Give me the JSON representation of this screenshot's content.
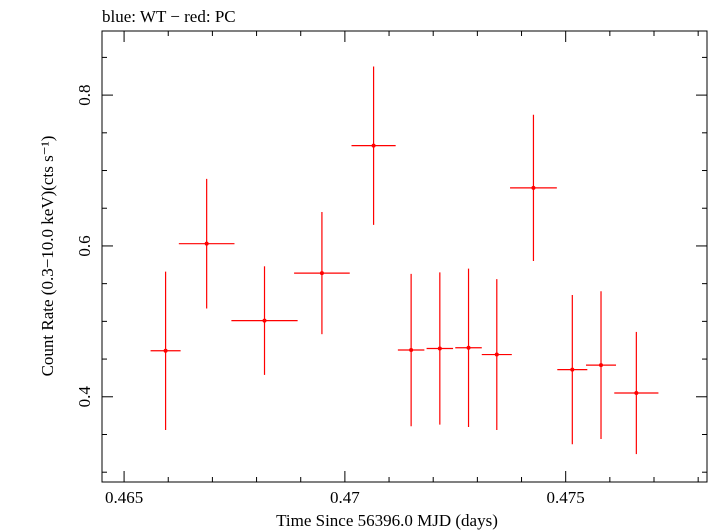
{
  "chart_data": {
    "type": "scatter",
    "title": "blue: WT − red: PC",
    "xlabel": "Time Since 56396.0 MJD (days)",
    "ylabel": "Count Rate (0.3−10.0 keV)(cts s⁻¹)",
    "xlim": [
      0.4645,
      0.4782
    ],
    "ylim": [
      0.287,
      0.885
    ],
    "x_ticks": [
      0.465,
      0.47,
      0.475
    ],
    "x_tick_labels": [
      "0.465",
      "0.47",
      "0.475"
    ],
    "y_ticks": [
      0.4,
      0.6,
      0.8
    ],
    "y_tick_labels": [
      "0.4",
      "0.6",
      "0.8"
    ],
    "grid": false,
    "series": [
      {
        "color": "#ff0000",
        "points": [
          {
            "x": 0.46594,
            "xerr": 0.00034,
            "y": 0.461,
            "yerr": 0.105
          },
          {
            "x": 0.46687,
            "xerr": 0.00063,
            "y": 0.603,
            "yerr": 0.086
          },
          {
            "x": 0.46818,
            "xerr": 0.00075,
            "y": 0.501,
            "yerr": 0.072
          },
          {
            "x": 0.46948,
            "xerr": 0.00063,
            "y": 0.564,
            "yerr": 0.081
          },
          {
            "x": 0.47065,
            "xerr": 0.0005,
            "y": 0.733,
            "yerr": 0.105
          },
          {
            "x": 0.4715,
            "xerr": 0.0003,
            "y": 0.462,
            "yerr": 0.101
          },
          {
            "x": 0.47215,
            "xerr": 0.0003,
            "y": 0.464,
            "yerr": 0.101
          },
          {
            "x": 0.4728,
            "xerr": 0.0003,
            "y": 0.465,
            "yerr": 0.105
          },
          {
            "x": 0.47344,
            "xerr": 0.00034,
            "y": 0.456,
            "yerr": 0.1
          },
          {
            "x": 0.47427,
            "xerr": 0.00053,
            "y": 0.677,
            "yerr": 0.097
          },
          {
            "x": 0.47515,
            "xerr": 0.00034,
            "y": 0.436,
            "yerr": 0.099
          },
          {
            "x": 0.4758,
            "xerr": 0.00034,
            "y": 0.442,
            "yerr": 0.098
          },
          {
            "x": 0.4766,
            "xerr": 0.0005,
            "y": 0.405,
            "yerr": 0.081
          }
        ]
      }
    ]
  }
}
